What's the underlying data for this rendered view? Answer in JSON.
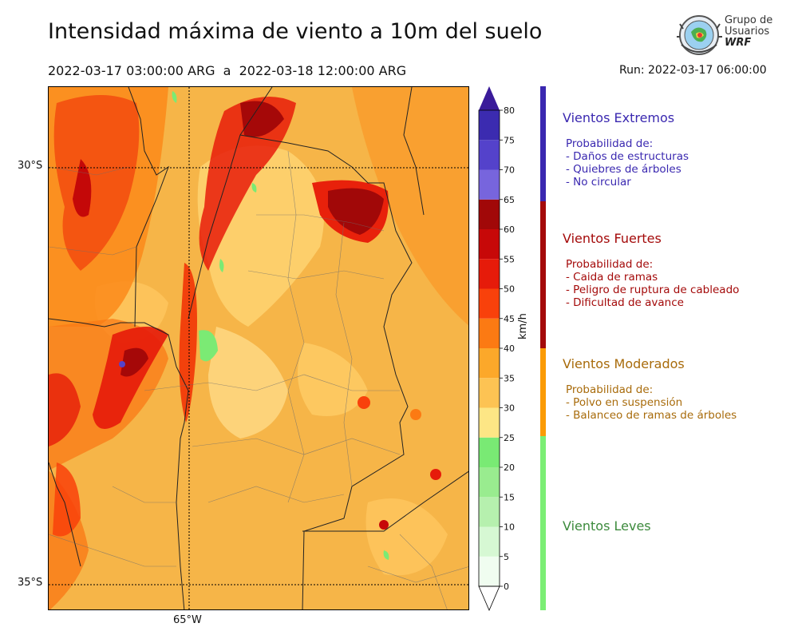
{
  "header": {
    "title": "Intensidad máxima de viento a 10m del suelo",
    "period": "2022-03-17 03:00:00 ARG  a  2022-03-18 12:00:00 ARG",
    "run": "Run: 2022-03-17 06:00:00"
  },
  "logo": {
    "line1": "Grupo de",
    "line2": "Usuarios",
    "line3": "WRF"
  },
  "map": {
    "lat_labels": [
      "30°S",
      "35°S"
    ],
    "lon_labels": [
      "65°W"
    ],
    "gridlines": "dotted"
  },
  "colorbar": {
    "unit": "km/h",
    "ticks": [
      "0",
      "5",
      "10",
      "15",
      "20",
      "25",
      "30",
      "35",
      "40",
      "45",
      "50",
      "55",
      "60",
      "65",
      "70",
      "75",
      "80"
    ],
    "colors": [
      "#f0fdf0",
      "#d6f8d3",
      "#b6f0ae",
      "#99ec8f",
      "#79ea74",
      "#fde685",
      "#fdc353",
      "#fca82a",
      "#fc7a13",
      "#f9410b",
      "#e61b0a",
      "#c70808",
      "#a10808",
      "#7765dd",
      "#5442cb",
      "#3b2bb0"
    ],
    "under_color": "#ffffff",
    "over_color": "#3a1b9a"
  },
  "categories": [
    {
      "title": "Vientos Extremos",
      "color": "#3a28b0",
      "lines": [
        "Probabilidad de:",
        "- Daños de estructuras",
        "- Quiebres de árboles",
        "- No circular"
      ]
    },
    {
      "title": "Vientos Fuertes",
      "color": "#a40a0a",
      "lines": [
        "Probabilidad de:",
        "- Caida de ramas",
        "- Peligro de ruptura de cableado",
        "- Dificultad de avance"
      ]
    },
    {
      "title": "Vientos Moderados",
      "color": "#a86b0b",
      "lines": [
        "Probabilidad de:",
        "- Polvo en suspensión",
        "- Balanceo de ramas de árboles"
      ]
    },
    {
      "title": "Vientos Leves",
      "color": "#3c8a3c",
      "lines": []
    }
  ],
  "category_bar_colors": [
    "#3a28b0",
    "#a40a0a",
    "#fb9b06",
    "#7bee74"
  ]
}
